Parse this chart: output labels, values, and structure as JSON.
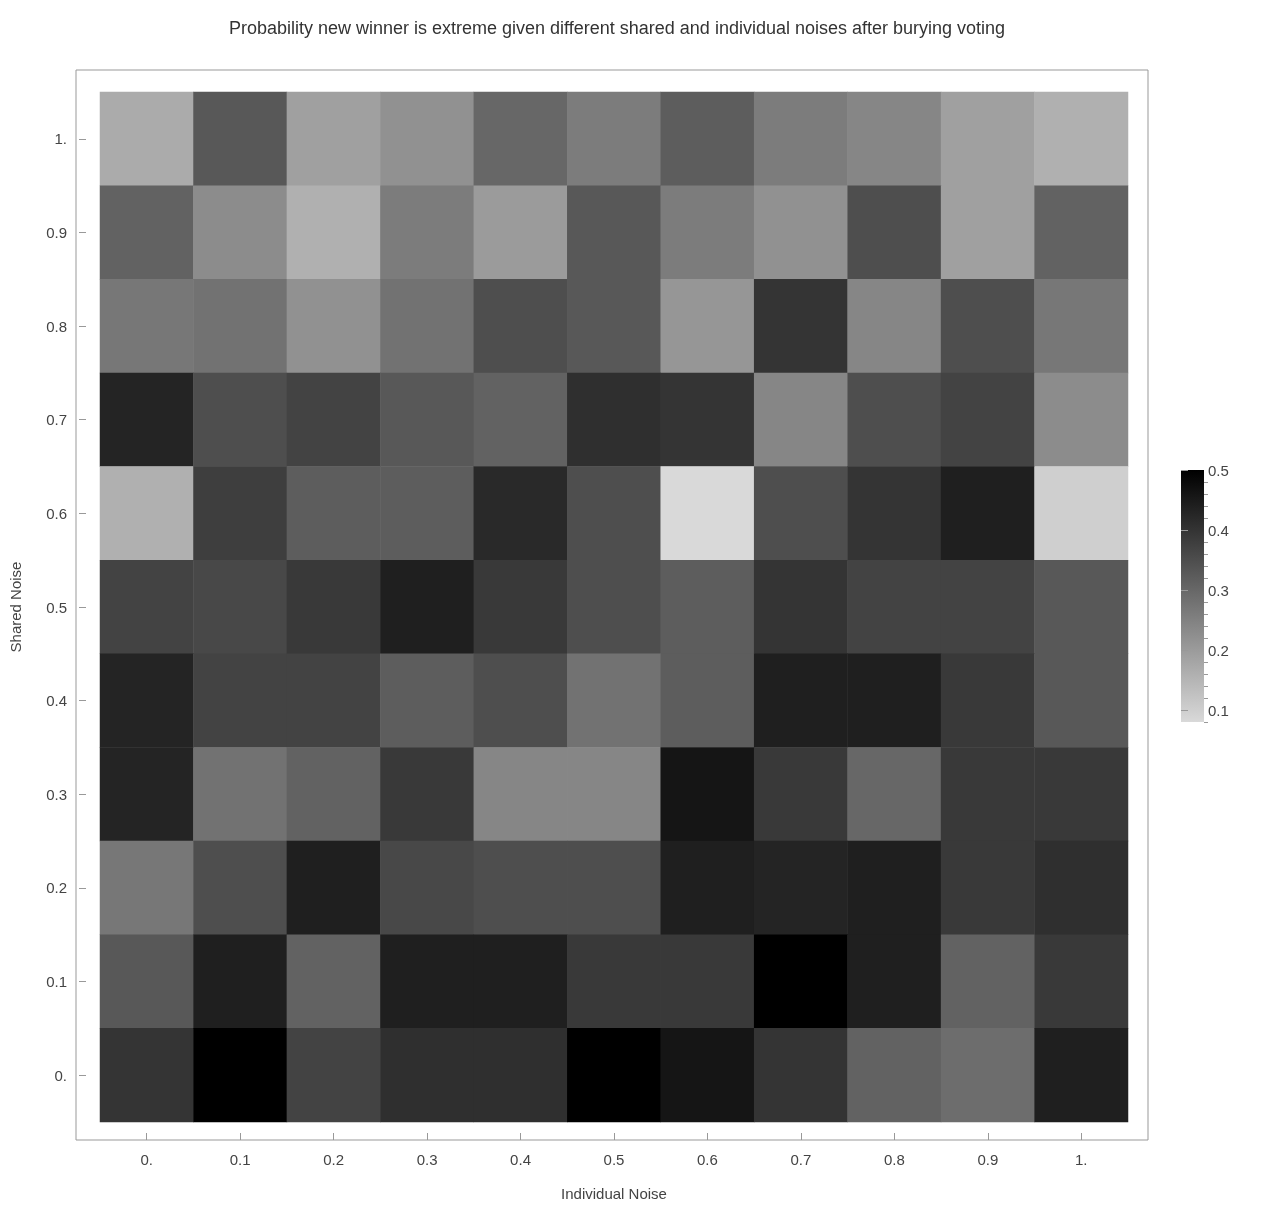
{
  "chart_data": {
    "type": "heatmap",
    "title": "Probability new winner is extreme given different shared and individual noises after burying voting",
    "xlabel": "Individual Noise",
    "ylabel": "Shared Noise",
    "categories": [
      "0.",
      "0.1",
      "0.2",
      "0.3",
      "0.4",
      "0.5",
      "0.6",
      "0.7",
      "0.8",
      "0.9",
      "1."
    ],
    "y_categories": [
      "1.",
      "0.9",
      "0.8",
      "0.7",
      "0.6",
      "0.5",
      "0.4",
      "0.3",
      "0.2",
      "0.1",
      "0."
    ],
    "cells": [
      [
        0.17,
        0.33,
        0.19,
        0.22,
        0.3,
        0.26,
        0.32,
        0.26,
        0.24,
        0.19,
        0.16
      ],
      [
        0.31,
        0.23,
        0.16,
        0.26,
        0.2,
        0.33,
        0.26,
        0.22,
        0.35,
        0.19,
        0.31
      ],
      [
        0.27,
        0.28,
        0.22,
        0.28,
        0.35,
        0.33,
        0.21,
        0.4,
        0.24,
        0.35,
        0.27
      ],
      [
        0.43,
        0.35,
        0.37,
        0.33,
        0.31,
        0.41,
        0.4,
        0.24,
        0.35,
        0.37,
        0.23
      ],
      [
        0.16,
        0.38,
        0.32,
        0.32,
        0.42,
        0.35,
        0.08,
        0.35,
        0.4,
        0.44,
        0.1
      ],
      [
        0.37,
        0.36,
        0.39,
        0.44,
        0.39,
        0.35,
        0.32,
        0.4,
        0.37,
        0.37,
        0.33
      ],
      [
        0.43,
        0.37,
        0.37,
        0.32,
        0.35,
        0.28,
        0.32,
        0.44,
        0.44,
        0.39,
        0.33
      ],
      [
        0.43,
        0.28,
        0.31,
        0.39,
        0.24,
        0.24,
        0.46,
        0.39,
        0.3,
        0.39,
        0.39
      ],
      [
        0.27,
        0.35,
        0.44,
        0.36,
        0.35,
        0.35,
        0.44,
        0.43,
        0.44,
        0.39,
        0.41
      ],
      [
        0.33,
        0.44,
        0.31,
        0.44,
        0.44,
        0.39,
        0.39,
        0.5,
        0.44,
        0.31,
        0.39
      ],
      [
        0.4,
        0.5,
        0.37,
        0.41,
        0.41,
        0.5,
        0.46,
        0.4,
        0.31,
        0.29,
        0.44
      ]
    ],
    "clim": [
      0.08,
      0.5
    ],
    "cticks": [
      {
        "value": 0.08,
        "label": null
      },
      0.1,
      {
        "value": 0.12,
        "label": null
      },
      {
        "value": 0.14,
        "label": null
      },
      {
        "value": 0.16,
        "label": null
      },
      {
        "value": 0.18,
        "label": null
      },
      0.2,
      {
        "value": 0.22,
        "label": null
      },
      {
        "value": 0.24,
        "label": null
      },
      {
        "value": 0.26,
        "label": null
      },
      {
        "value": 0.28,
        "label": null
      },
      0.3,
      {
        "value": 0.32,
        "label": null
      },
      {
        "value": 0.34,
        "label": null
      },
      {
        "value": 0.36,
        "label": null
      },
      {
        "value": 0.38,
        "label": null
      },
      0.4,
      {
        "value": 0.42,
        "label": null
      },
      {
        "value": 0.44,
        "label": null
      },
      {
        "value": 0.46,
        "label": null
      },
      {
        "value": 0.48,
        "label": null
      },
      0.5
    ]
  }
}
